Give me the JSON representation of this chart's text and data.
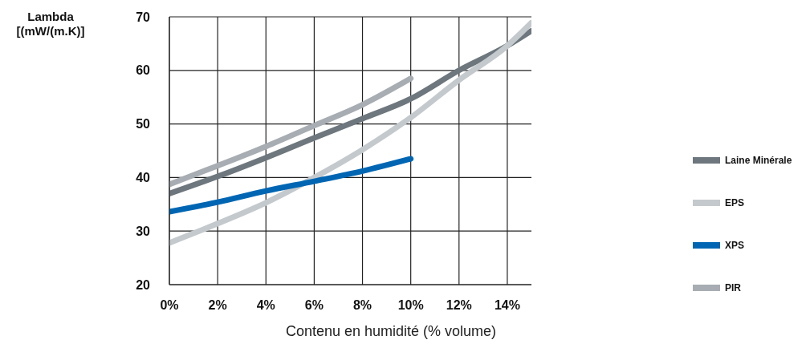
{
  "chart_data": {
    "type": "line",
    "xlabel": "Contenu en humidité  (% volume)",
    "ylabel": "Lambda [(mW/(m.K)]",
    "xlim": [
      0,
      15
    ],
    "xticks": [
      {
        "value": 0,
        "label": "0%"
      },
      {
        "value": 2,
        "label": "2%"
      },
      {
        "value": 4,
        "label": "4%"
      },
      {
        "value": 6,
        "label": "6%"
      },
      {
        "value": 8,
        "label": "8%"
      },
      {
        "value": 10,
        "label": "10%"
      },
      {
        "value": 12,
        "label": "12%"
      },
      {
        "value": 14,
        "label": "14%"
      }
    ],
    "ylim": [
      20,
      70
    ],
    "yticks": [
      20,
      30,
      40,
      50,
      60,
      70
    ],
    "grid": true,
    "legend": "right",
    "marker": "none",
    "line_style": "solid",
    "series": [
      {
        "name": "Laine Minérale",
        "color": "#6d777d",
        "x": [
          0,
          2,
          4,
          6,
          8,
          10,
          12,
          14,
          15
        ],
        "values": [
          37,
          40.2,
          43.7,
          47.4,
          51,
          54.7,
          60,
          64.6,
          67.4
        ]
      },
      {
        "name": "EPS",
        "color": "#c4c9cd",
        "x": [
          0,
          2,
          4,
          6,
          8,
          10,
          12,
          14,
          15
        ],
        "values": [
          27.8,
          31.4,
          35.3,
          40,
          45.2,
          51.2,
          58.2,
          64.6,
          68.9
        ]
      },
      {
        "name": "XPS",
        "color": "#0066b3",
        "x": [
          0,
          2,
          4,
          6,
          8,
          10
        ],
        "values": [
          33.6,
          35.4,
          37.5,
          39.3,
          41.2,
          43.5
        ]
      },
      {
        "name": "PIR",
        "color": "#a7adb2",
        "x": [
          0,
          2,
          4,
          6,
          8,
          10
        ],
        "values": [
          38.7,
          42.2,
          45.8,
          49.7,
          53.6,
          58.5
        ]
      }
    ]
  }
}
